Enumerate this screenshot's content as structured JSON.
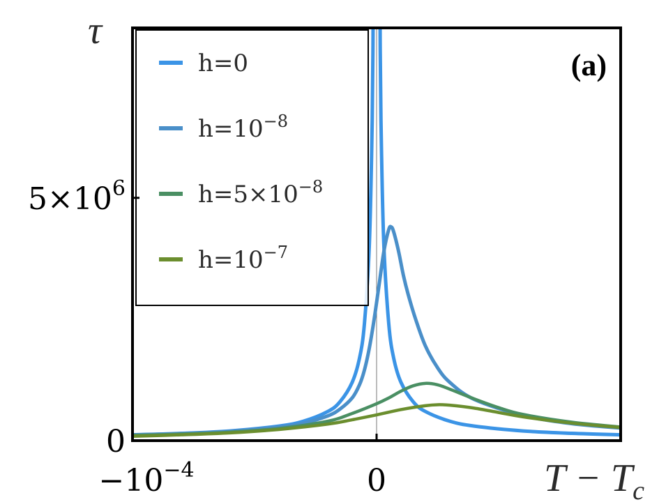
{
  "chart_data": {
    "type": "line",
    "title": "",
    "panel_label": "(a)",
    "ylabel": "τ",
    "xlabel": "T − T_c",
    "xlim": [
      -0.0001,
      0.0001
    ],
    "ylim": [
      0,
      8500000
    ],
    "x_ticks": [
      {
        "value": -0.0001,
        "label": "−10",
        "exp": "−4"
      },
      {
        "value": 0,
        "label": "0",
        "exp": ""
      }
    ],
    "y_ticks": [
      {
        "value": 0,
        "label": "0",
        "exp": ""
      },
      {
        "value": 5000000,
        "label": "5×10",
        "exp": "6"
      }
    ],
    "legend": {
      "position": "top-left",
      "entries": [
        {
          "base": "h=0",
          "exp": ""
        },
        {
          "base": "h=10",
          "exp": "−8"
        },
        {
          "base": "h=5×10",
          "exp": "−8"
        },
        {
          "base": "h=10",
          "exp": "−7"
        }
      ]
    },
    "series": [
      {
        "name": "h=0",
        "color": "#3b94e6",
        "x": [
          -0.0001,
          -8e-05,
          -6e-05,
          -4e-05,
          -3e-05,
          -2e-05,
          -1.5e-05,
          -1e-05,
          -7e-06,
          -5e-06,
          -3e-06,
          -2e-06,
          -1.5e-06,
          -1e-06,
          1e-06,
          1.5e-06,
          2e-06,
          3e-06,
          5e-06,
          7e-06,
          1e-05,
          1.5e-05,
          2e-05,
          3e-05,
          4e-05,
          6e-05,
          8e-05,
          0.0001
        ],
        "y": [
          120000,
          150000,
          200000,
          300000,
          400000,
          600000,
          800000,
          1200000,
          1700000,
          2400000,
          4000000,
          6000000,
          8000000,
          12000000,
          12000000,
          8000000,
          6000000,
          4000000,
          2400000,
          1700000,
          1200000,
          800000,
          600000,
          400000,
          300000,
          200000,
          150000,
          120000
        ]
      },
      {
        "name": "h=10−8",
        "color": "#4a8fc9",
        "x": [
          -0.0001,
          -8e-05,
          -6e-05,
          -4e-05,
          -3e-05,
          -2e-05,
          -1.5e-05,
          -1e-05,
          -7e-06,
          -5e-06,
          -3e-06,
          -1e-06,
          1e-06,
          3e-06,
          5e-06,
          6e-06,
          7e-06,
          9e-06,
          1.1e-05,
          1.3e-05,
          1.6e-05,
          2e-05,
          2.5e-05,
          3e-05,
          4e-05,
          6e-05,
          8e-05,
          0.0001
        ],
        "y": [
          118000,
          145000,
          190000,
          280000,
          360000,
          510000,
          650000,
          880000,
          1150000,
          1450000,
          1900000,
          2500000,
          3200000,
          3900000,
          4350000,
          4400000,
          4300000,
          3900000,
          3400000,
          3000000,
          2500000,
          1950000,
          1500000,
          1200000,
          850000,
          520000,
          350000,
          260000
        ]
      },
      {
        "name": "h=5×10−8",
        "color": "#4a8f63",
        "x": [
          -0.0001,
          -8e-05,
          -6e-05,
          -4e-05,
          -2e-05,
          -1e-05,
          0,
          5e-06,
          1e-05,
          1.5e-05,
          2e-05,
          2.5e-05,
          3e-05,
          4e-05,
          5e-05,
          6e-05,
          8e-05,
          0.0001
        ],
        "y": [
          110000,
          135000,
          175000,
          250000,
          400000,
          560000,
          760000,
          880000,
          1020000,
          1130000,
          1180000,
          1150000,
          1060000,
          860000,
          680000,
          540000,
          380000,
          280000
        ]
      },
      {
        "name": "h=10−7",
        "color": "#6b8e2e",
        "x": [
          -0.0001,
          -8e-05,
          -6e-05,
          -4e-05,
          -2e-05,
          -1e-05,
          0,
          1e-05,
          2e-05,
          2.5e-05,
          3e-05,
          4e-05,
          5e-05,
          6e-05,
          8e-05,
          0.0001
        ],
        "y": [
          90000,
          120000,
          160000,
          230000,
          340000,
          430000,
          530000,
          640000,
          720000,
          740000,
          730000,
          670000,
          580000,
          490000,
          360000,
          270000
        ]
      }
    ]
  }
}
